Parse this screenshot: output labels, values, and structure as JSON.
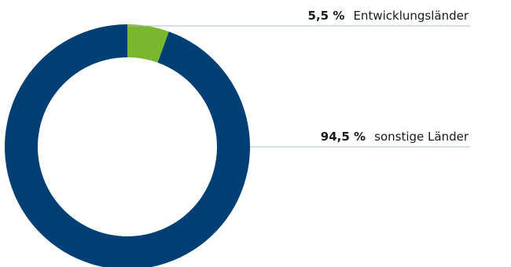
{
  "chart_data": {
    "type": "pie",
    "variant": "donut",
    "slices": [
      {
        "label": "Entwicklungsländer",
        "value": 5.5,
        "value_label": "5,5 %",
        "color": "#7ab72e"
      },
      {
        "label": "sonstige Länder",
        "value": 94.5,
        "value_label": "94,5 %",
        "color": "#003f73"
      }
    ],
    "legend": "none",
    "leader_line_color": "#a7bccb"
  }
}
